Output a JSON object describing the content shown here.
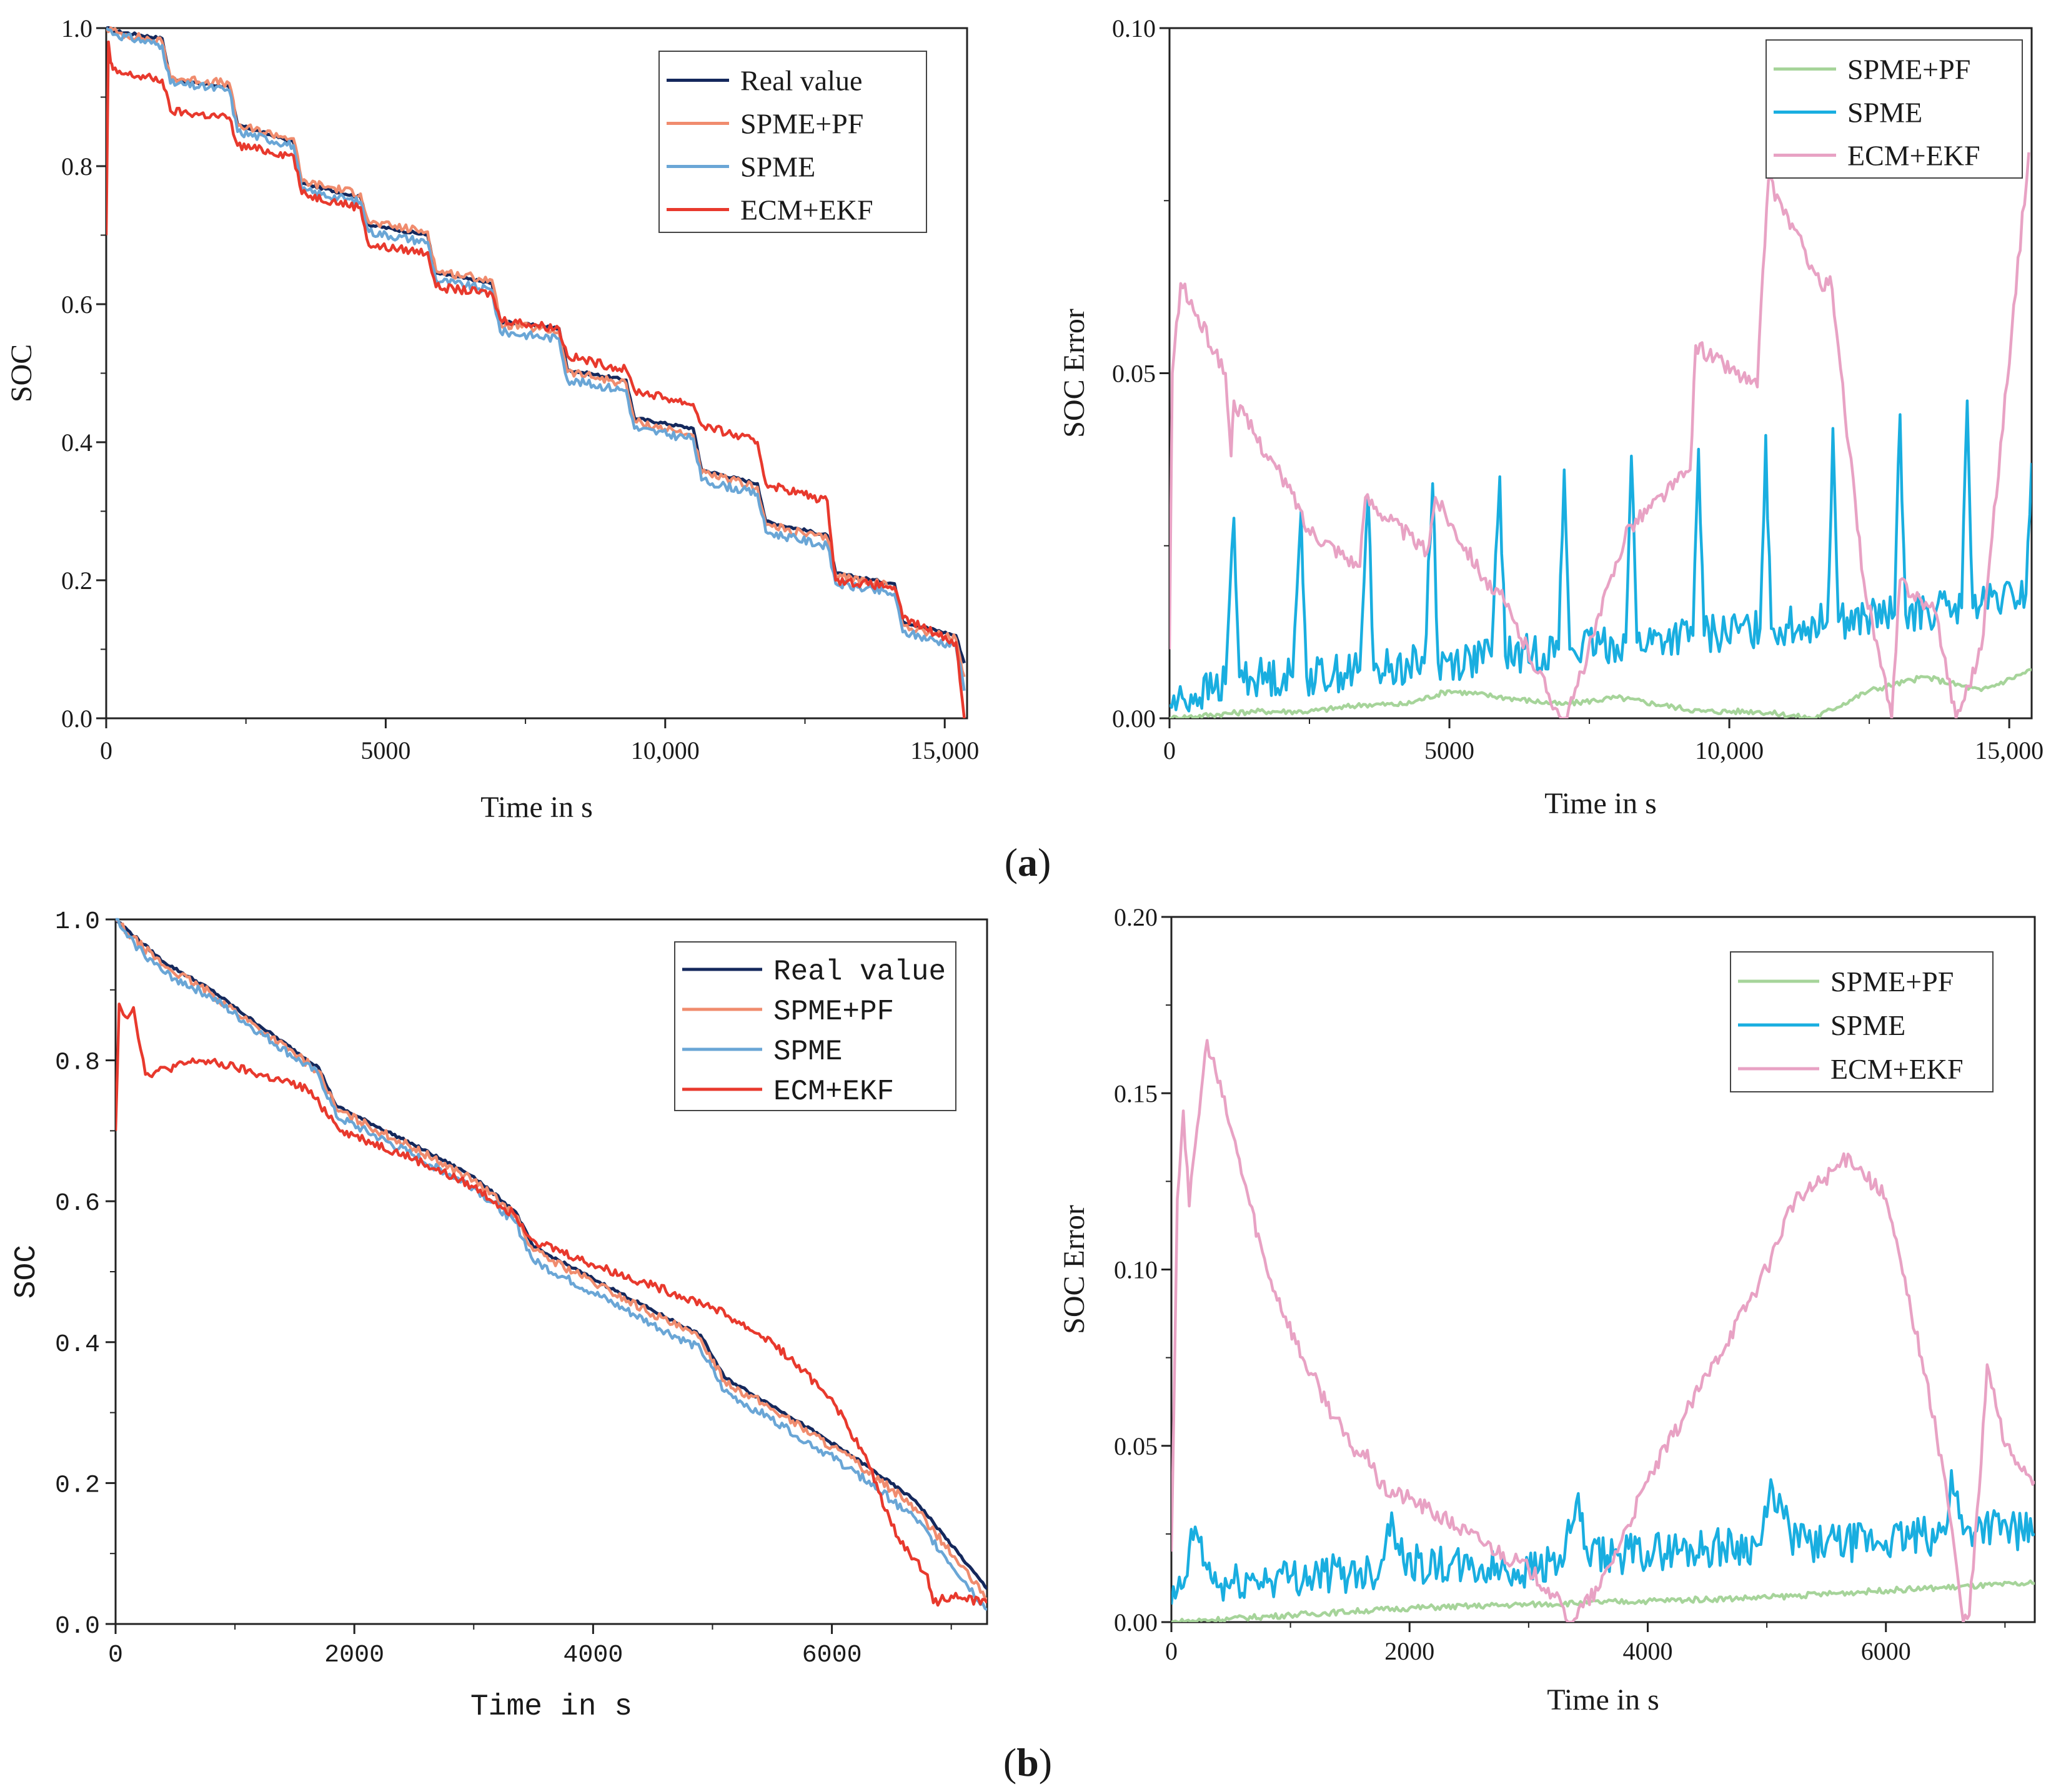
{
  "figure": {
    "panel_labels": [
      {
        "open": "(",
        "letter": "a",
        "close": ")"
      },
      {
        "open": "(",
        "letter": "b",
        "close": ")"
      }
    ],
    "colors": {
      "real_value": "#14285c",
      "spme_pf_soc": "#f08c6e",
      "spme_soc": "#6aa6d6",
      "ecm_ekf_soc": "#e8392d",
      "spme_pf_err": "#a6d49a",
      "spme_err": "#19aee0",
      "ecm_ekf_err": "#e8a2c4"
    }
  },
  "chart_data": [
    {
      "id": "a-soc",
      "type": "line",
      "xlabel": "Time in s",
      "ylabel": "SOC",
      "xlim": [
        0,
        15400
      ],
      "ylim": [
        0,
        1.0
      ],
      "xticks": [
        0,
        5000,
        10000,
        15000
      ],
      "xtick_labels": [
        "0",
        "5000",
        "10,000",
        "15,000"
      ],
      "yticks": [
        0,
        0.2,
        0.4,
        0.6,
        0.8,
        1.0
      ],
      "ytick_labels": [
        "0.0",
        "0.2",
        "0.4",
        "0.6",
        "0.8",
        "1.0"
      ],
      "legend": [
        "Real value",
        "SPME+PF",
        "SPME",
        "ECM+EKF"
      ],
      "legend_position": "top-right",
      "series": [
        {
          "name": "Real value",
          "x": [
            0,
            200,
            1000,
            1150,
            2200,
            2350,
            3350,
            3500,
            4550,
            4700,
            5750,
            5900,
            6900,
            7050,
            8100,
            8250,
            9300,
            9450,
            10500,
            10650,
            11650,
            11800,
            12900,
            13050,
            14100,
            14250,
            15200,
            15350
          ],
          "y": [
            1.0,
            0.995,
            0.985,
            0.925,
            0.915,
            0.86,
            0.835,
            0.775,
            0.755,
            0.715,
            0.7,
            0.645,
            0.63,
            0.575,
            0.565,
            0.505,
            0.49,
            0.435,
            0.42,
            0.36,
            0.34,
            0.285,
            0.265,
            0.21,
            0.195,
            0.14,
            0.12,
            0.08
          ]
        },
        {
          "name": "SPME+PF",
          "x": [
            0,
            200,
            1000,
            1150,
            2200,
            2350,
            3350,
            3500,
            4550,
            4700,
            5750,
            5900,
            6900,
            7050,
            8100,
            8250,
            9300,
            9450,
            10500,
            10650,
            11650,
            11800,
            12900,
            13050,
            14100,
            14250,
            15200,
            15350
          ],
          "y": [
            1.0,
            0.993,
            0.98,
            0.928,
            0.92,
            0.858,
            0.84,
            0.778,
            0.76,
            0.718,
            0.705,
            0.648,
            0.635,
            0.572,
            0.56,
            0.502,
            0.485,
            0.43,
            0.41,
            0.355,
            0.335,
            0.28,
            0.26,
            0.208,
            0.19,
            0.135,
            0.115,
            0.06
          ]
        },
        {
          "name": "SPME",
          "x": [
            0,
            200,
            1000,
            1150,
            2200,
            2350,
            3350,
            3500,
            4550,
            4700,
            5750,
            5900,
            6900,
            7050,
            8100,
            8250,
            9300,
            9450,
            10500,
            10650,
            11650,
            11800,
            12900,
            13050,
            14100,
            14250,
            15200,
            15350
          ],
          "y": [
            1.0,
            0.99,
            0.975,
            0.92,
            0.91,
            0.85,
            0.83,
            0.765,
            0.748,
            0.705,
            0.69,
            0.635,
            0.62,
            0.56,
            0.55,
            0.49,
            0.475,
            0.42,
            0.405,
            0.345,
            0.325,
            0.27,
            0.25,
            0.195,
            0.18,
            0.125,
            0.105,
            0.04
          ]
        },
        {
          "name": "ECM+EKF",
          "x": [
            0,
            40,
            80,
            120,
            200,
            1000,
            1150,
            2200,
            2350,
            3350,
            3500,
            4550,
            4700,
            5750,
            5900,
            6900,
            7050,
            8100,
            8250,
            9300,
            9450,
            10500,
            10650,
            11650,
            11800,
            12900,
            13050,
            14100,
            14250,
            15200,
            15350
          ],
          "y": [
            0.7,
            0.98,
            0.95,
            0.94,
            0.935,
            0.925,
            0.88,
            0.87,
            0.83,
            0.815,
            0.76,
            0.74,
            0.685,
            0.675,
            0.625,
            0.615,
            0.578,
            0.565,
            0.525,
            0.505,
            0.475,
            0.455,
            0.425,
            0.4,
            0.34,
            0.315,
            0.2,
            0.19,
            0.145,
            0.11,
            0.0
          ]
        }
      ]
    },
    {
      "id": "a-err",
      "type": "line",
      "xlabel": "Time in s",
      "ylabel": "SOC Error",
      "xlim": [
        0,
        15400
      ],
      "ylim": [
        0,
        0.1
      ],
      "xticks": [
        0,
        5000,
        10000,
        15000
      ],
      "xtick_labels": [
        "0",
        "5000",
        "10,000",
        "15,000"
      ],
      "yticks": [
        0,
        0.05,
        0.1
      ],
      "ytick_labels": [
        "0.00",
        "0.05",
        "0.10"
      ],
      "legend": [
        "SPME+PF",
        "SPME",
        "ECM+EKF"
      ],
      "legend_position": "top-right",
      "series": [
        {
          "name": "SPME+PF",
          "x": [
            0,
            1500,
            2500,
            3500,
            4200,
            5000,
            6000,
            7000,
            8000,
            9500,
            10500,
            11500,
            12500,
            13500,
            14500,
            15400
          ],
          "y": [
            0.0,
            0.001,
            0.001,
            0.002,
            0.002,
            0.004,
            0.003,
            0.002,
            0.003,
            0.001,
            0.001,
            0.0,
            0.004,
            0.006,
            0.004,
            0.007
          ]
        },
        {
          "name": "SPME",
          "x": [
            0,
            1000,
            1150,
            1250,
            2200,
            2350,
            2450,
            3400,
            3550,
            3650,
            4550,
            4700,
            4800,
            5750,
            5900,
            6000,
            6950,
            7050,
            7150,
            8150,
            8250,
            8350,
            9350,
            9450,
            9550,
            10550,
            10650,
            10750,
            11750,
            11850,
            11950,
            12950,
            13050,
            13150,
            14150,
            14250,
            14350,
            15300,
            15400
          ],
          "y": [
            0.002,
            0.005,
            0.029,
            0.006,
            0.006,
            0.03,
            0.006,
            0.007,
            0.032,
            0.007,
            0.008,
            0.034,
            0.008,
            0.009,
            0.035,
            0.009,
            0.01,
            0.036,
            0.01,
            0.011,
            0.038,
            0.011,
            0.012,
            0.039,
            0.012,
            0.013,
            0.041,
            0.013,
            0.014,
            0.042,
            0.014,
            0.015,
            0.044,
            0.015,
            0.016,
            0.046,
            0.016,
            0.018,
            0.037
          ]
        },
        {
          "name": "ECM+EKF",
          "x": [
            0,
            50,
            200,
            1000,
            1100,
            1150,
            2300,
            2400,
            3400,
            3500,
            4600,
            4750,
            5800,
            5900,
            7000,
            7100,
            8200,
            8250,
            9300,
            9400,
            10500,
            10600,
            10700,
            11700,
            11800,
            12400,
            12900,
            13050,
            13700,
            14050,
            14500,
            15350
          ],
          "y": [
            0.01,
            0.05,
            0.063,
            0.05,
            0.038,
            0.046,
            0.031,
            0.028,
            0.022,
            0.032,
            0.024,
            0.032,
            0.018,
            0.018,
            0.0,
            0.0,
            0.028,
            0.028,
            0.036,
            0.054,
            0.048,
            0.065,
            0.078,
            0.062,
            0.064,
            0.02,
            0.0,
            0.02,
            0.015,
            0.0,
            0.01,
            0.082
          ]
        }
      ]
    },
    {
      "id": "b-soc",
      "type": "line",
      "xlabel": "Time in s",
      "ylabel": "SOC",
      "xlim": [
        0,
        7300
      ],
      "ylim": [
        0,
        1.0
      ],
      "xticks": [
        0,
        2000,
        4000,
        6000
      ],
      "xtick_labels": [
        "0",
        "2000",
        "4000",
        "6000"
      ],
      "yticks": [
        0,
        0.2,
        0.4,
        0.6,
        0.8,
        1.0
      ],
      "ytick_labels": [
        "0.0",
        "0.2",
        "0.4",
        "0.6",
        "0.8",
        "1.0"
      ],
      "legend": [
        "Real value",
        "SPME+PF",
        "SPME",
        "ECM+EKF"
      ],
      "legend_position": "top-right",
      "series": [
        {
          "name": "Real value",
          "x": [
            0,
            100,
            400,
            800,
            1200,
            1700,
            1850,
            2500,
            3000,
            3350,
            3500,
            4000,
            4500,
            4900,
            5100,
            5600,
            6200,
            6700,
            7300
          ],
          "y": [
            1.0,
            0.985,
            0.94,
            0.9,
            0.85,
            0.79,
            0.735,
            0.68,
            0.635,
            0.585,
            0.535,
            0.49,
            0.445,
            0.41,
            0.35,
            0.3,
            0.235,
            0.175,
            0.05
          ]
        },
        {
          "name": "SPME+PF",
          "x": [
            0,
            100,
            400,
            800,
            1200,
            1700,
            1850,
            2500,
            3000,
            3350,
            3500,
            4000,
            4500,
            4900,
            5100,
            5600,
            6200,
            6700,
            7300
          ],
          "y": [
            1.0,
            0.98,
            0.935,
            0.895,
            0.845,
            0.785,
            0.73,
            0.675,
            0.63,
            0.58,
            0.53,
            0.485,
            0.44,
            0.405,
            0.345,
            0.295,
            0.23,
            0.165,
            0.035
          ]
        },
        {
          "name": "SPME",
          "x": [
            0,
            100,
            400,
            800,
            1200,
            1700,
            1850,
            2500,
            3000,
            3350,
            3500,
            4000,
            4500,
            4900,
            5100,
            5600,
            6200,
            6700,
            7300
          ],
          "y": [
            1.0,
            0.975,
            0.925,
            0.89,
            0.84,
            0.78,
            0.72,
            0.665,
            0.62,
            0.57,
            0.515,
            0.47,
            0.425,
            0.39,
            0.33,
            0.28,
            0.215,
            0.15,
            0.02
          ]
        },
        {
          "name": "ECM+EKF",
          "x": [
            0,
            30,
            100,
            150,
            250,
            700,
            1000,
            1600,
            1900,
            2500,
            3000,
            3350,
            3500,
            4000,
            4500,
            5000,
            5500,
            6000,
            6300,
            6500,
            6650,
            6800,
            6850,
            7000,
            7300
          ],
          "y": [
            0.7,
            0.88,
            0.86,
            0.875,
            0.78,
            0.8,
            0.79,
            0.76,
            0.7,
            0.66,
            0.62,
            0.58,
            0.545,
            0.51,
            0.48,
            0.45,
            0.4,
            0.32,
            0.23,
            0.14,
            0.1,
            0.07,
            0.03,
            0.04,
            0.03
          ]
        }
      ]
    },
    {
      "id": "b-err",
      "type": "line",
      "xlabel": "Time in s",
      "ylabel": "SOC Error",
      "xlim": [
        0,
        7250
      ],
      "ylim": [
        0,
        0.2
      ],
      "xticks": [
        0,
        2000,
        4000,
        6000
      ],
      "xtick_labels": [
        "0",
        "2000",
        "4000",
        "6000"
      ],
      "yticks": [
        0,
        0.05,
        0.1,
        0.15,
        0.2
      ],
      "ytick_labels": [
        "0.00",
        "0.05",
        "0.10",
        "0.15",
        "0.20"
      ],
      "legend": [
        "SPME+PF",
        "SPME",
        "ECM+EKF"
      ],
      "legend_position": "top-right",
      "series": [
        {
          "name": "SPME+PF",
          "x": [
            0,
            500,
            1000,
            2000,
            3000,
            4000,
            5000,
            6000,
            7250
          ],
          "y": [
            0.0,
            0.001,
            0.002,
            0.004,
            0.005,
            0.006,
            0.007,
            0.009,
            0.011
          ]
        },
        {
          "name": "SPME",
          "x": [
            0,
            100,
            200,
            300,
            400,
            700,
            1000,
            1500,
            1750,
            1850,
            1950,
            2500,
            3000,
            3300,
            3400,
            3500,
            4000,
            4500,
            4950,
            5050,
            5200,
            5500,
            6000,
            6500,
            6550,
            6650,
            6800,
            7250
          ],
          "y": [
            0.005,
            0.01,
            0.027,
            0.015,
            0.01,
            0.012,
            0.013,
            0.014,
            0.015,
            0.031,
            0.017,
            0.015,
            0.015,
            0.018,
            0.034,
            0.018,
            0.02,
            0.021,
            0.022,
            0.038,
            0.024,
            0.022,
            0.023,
            0.025,
            0.043,
            0.025,
            0.028,
            0.025
          ]
        },
        {
          "name": "ECM+EKF",
          "x": [
            0,
            50,
            100,
            150,
            200,
            300,
            500,
            800,
            1100,
            1500,
            1700,
            1750,
            2000,
            2500,
            3000,
            3200,
            3350,
            3600,
            4000,
            4500,
            5000,
            5200,
            5700,
            6000,
            6300,
            6500,
            6650,
            6700,
            6800,
            6850,
            7000,
            7250
          ],
          "y": [
            0.02,
            0.12,
            0.145,
            0.118,
            0.135,
            0.165,
            0.14,
            0.1,
            0.075,
            0.05,
            0.045,
            0.038,
            0.035,
            0.025,
            0.015,
            0.008,
            0.0,
            0.01,
            0.04,
            0.07,
            0.1,
            0.118,
            0.132,
            0.12,
            0.075,
            0.04,
            0.0,
            0.002,
            0.045,
            0.073,
            0.05,
            0.04
          ]
        }
      ]
    }
  ]
}
